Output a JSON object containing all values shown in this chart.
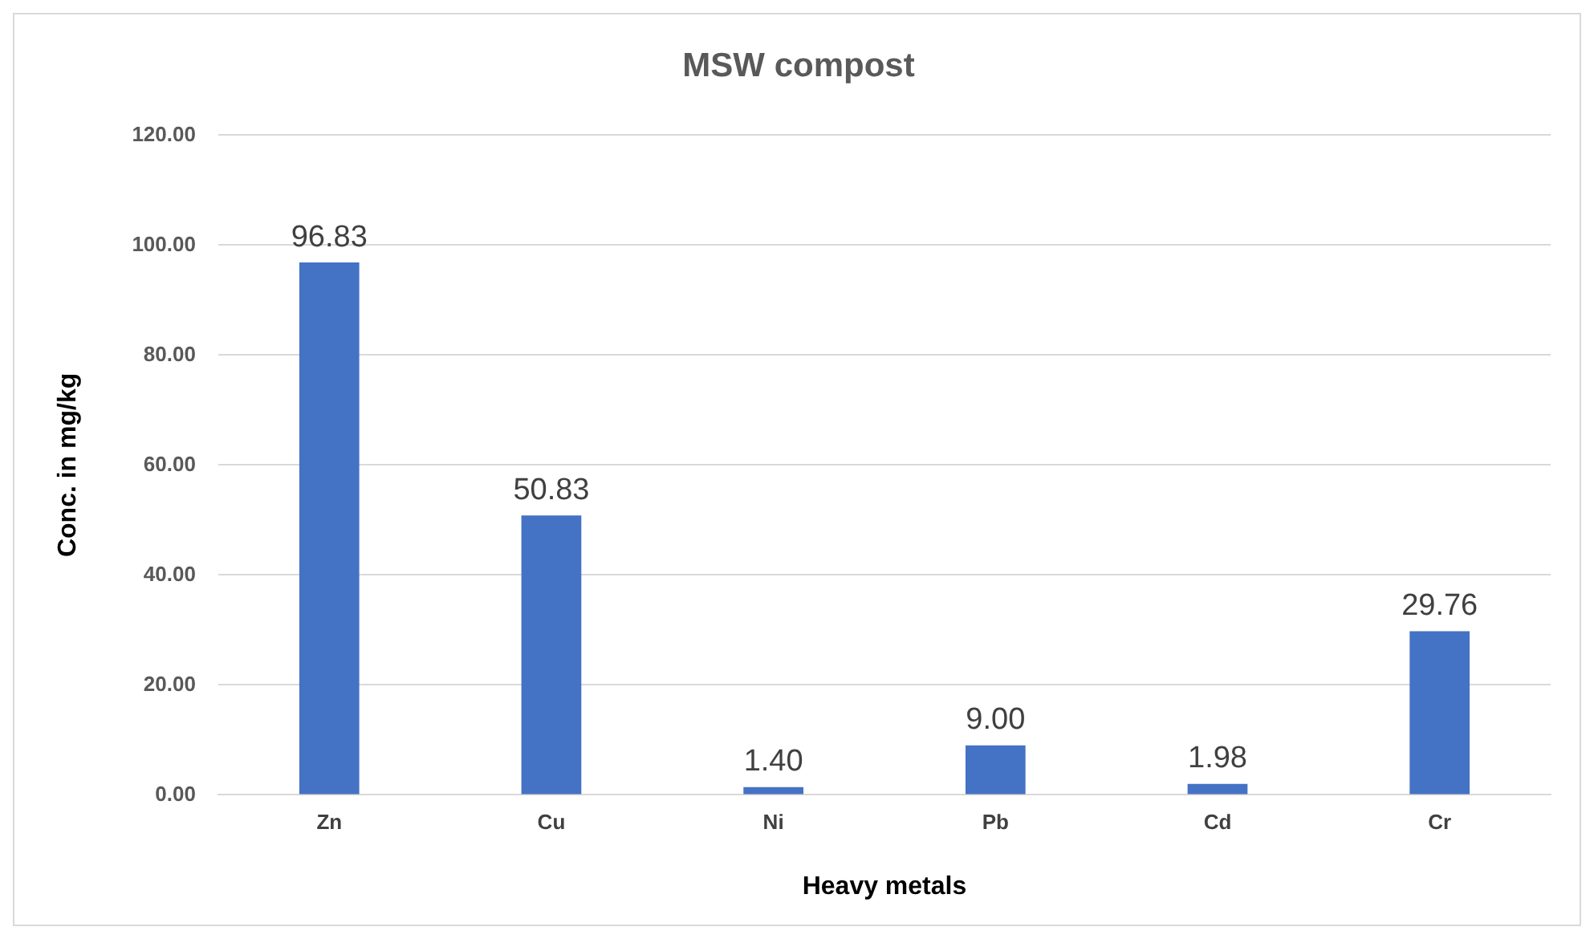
{
  "chart_data": {
    "type": "bar",
    "title": "MSW compost",
    "xlabel": "Heavy metals",
    "ylabel": "Conc. in mg/kg",
    "categories": [
      "Zn",
      "Cu",
      "Ni",
      "Pb",
      "Cd",
      "Cr"
    ],
    "values": [
      96.83,
      50.83,
      1.4,
      9,
      1.98,
      29.76
    ],
    "value_labels": [
      "96.83",
      "50.83",
      "1.40",
      "9.00",
      "1.98",
      "29.76"
    ],
    "color": "#4472c4",
    "ylim": [
      0,
      120
    ],
    "yticks": [
      {
        "value": 0,
        "label": "0.00"
      },
      {
        "value": 20,
        "label": "20.00"
      },
      {
        "value": 40,
        "label": "40.00"
      },
      {
        "value": 60,
        "label": "60.00"
      },
      {
        "value": 80,
        "label": "80.00"
      },
      {
        "value": 100,
        "label": "100.00"
      },
      {
        "value": 120,
        "label": "120.00"
      }
    ],
    "grid": "y",
    "legend": false
  }
}
